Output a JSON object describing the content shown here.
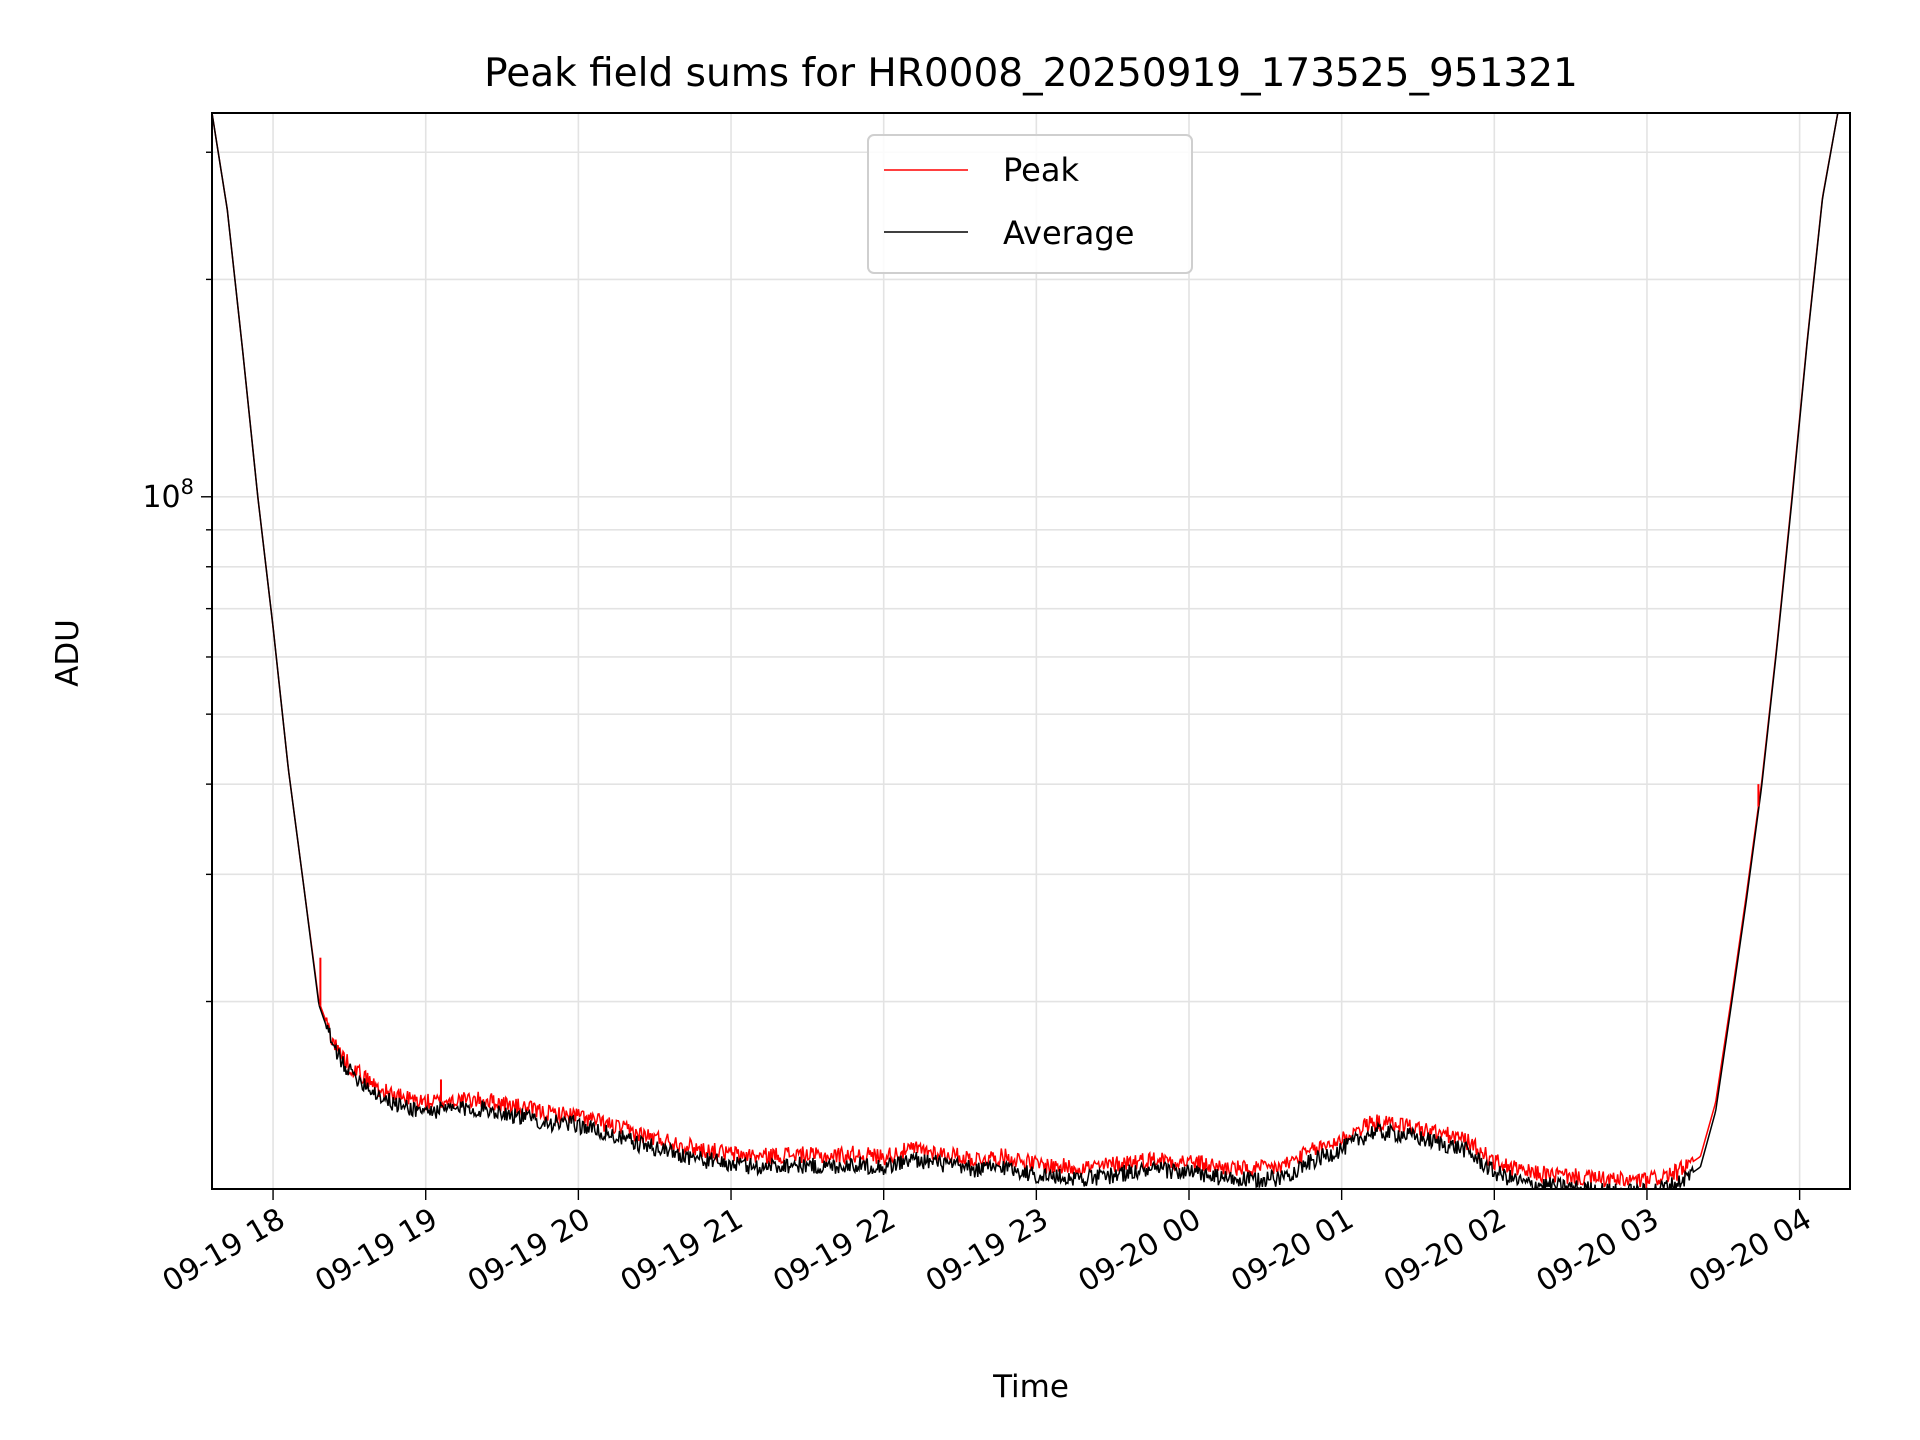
{
  "chart_data": {
    "type": "line",
    "title": "Peak field sums for HR0008_20250919_173525_951321",
    "xlabel": "Time",
    "ylabel": "ADU",
    "yscale": "log",
    "grid": true,
    "grid_color": "#e3e3e3",
    "legend_position": "top-center",
    "x_unit": "hours since 2025-09-19 17:00",
    "xlim": [
      0.6,
      11.33
    ],
    "ylim": [
      11000000,
      340000000
    ],
    "y_major_tick": {
      "value": 100000000,
      "base": "10",
      "exponent": "8"
    },
    "y_minor_ticks": [
      20000000,
      30000000,
      40000000,
      50000000,
      60000000,
      70000000,
      80000000,
      90000000,
      200000000,
      300000000
    ],
    "x_ticks": [
      {
        "value": 1,
        "label": "09-19 18"
      },
      {
        "value": 2,
        "label": "09-19 19"
      },
      {
        "value": 3,
        "label": "09-19 20"
      },
      {
        "value": 4,
        "label": "09-19 21"
      },
      {
        "value": 5,
        "label": "09-19 22"
      },
      {
        "value": 6,
        "label": "09-19 23"
      },
      {
        "value": 7,
        "label": "09-20 00"
      },
      {
        "value": 8,
        "label": "09-20 01"
      },
      {
        "value": 9,
        "label": "09-20 02"
      },
      {
        "value": 10,
        "label": "09-20 03"
      },
      {
        "value": 11,
        "label": "09-20 04"
      }
    ],
    "series": [
      {
        "name": "Peak",
        "color": "#ff0000",
        "x": [
          0.6,
          0.7,
          0.8,
          0.9,
          1.0,
          1.1,
          1.2,
          1.3,
          1.4,
          1.5,
          1.6,
          1.7,
          1.8,
          2.0,
          2.2,
          2.4,
          2.6,
          2.8,
          3.0,
          3.2,
          3.4,
          3.6,
          3.8,
          4.0,
          4.2,
          4.4,
          4.6,
          4.8,
          5.0,
          5.2,
          5.4,
          5.6,
          5.8,
          6.0,
          6.2,
          6.4,
          6.6,
          6.8,
          7.0,
          7.2,
          7.4,
          7.6,
          7.8,
          8.0,
          8.2,
          8.4,
          8.6,
          8.8,
          9.0,
          9.2,
          9.4,
          9.6,
          9.8,
          10.0,
          10.2,
          10.35,
          10.45,
          10.55,
          10.65,
          10.75,
          10.85,
          10.95,
          11.05,
          11.15,
          11.25,
          11.33
        ],
        "y": [
          340000000,
          250000000,
          160000000,
          100000000,
          66000000,
          42000000,
          29000000,
          20000000,
          17500000,
          16300000,
          15700000,
          15100000,
          14800000,
          14500000,
          14600000,
          14600000,
          14300000,
          14000000,
          13900000,
          13500000,
          13100000,
          12800000,
          12500000,
          12300000,
          12200000,
          12300000,
          12200000,
          12300000,
          12200000,
          12500000,
          12300000,
          12100000,
          12200000,
          11900000,
          11800000,
          11800000,
          12000000,
          12100000,
          12000000,
          11800000,
          11700000,
          11800000,
          12400000,
          12900000,
          13600000,
          13500000,
          13200000,
          12900000,
          12000000,
          11600000,
          11500000,
          11400000,
          11300000,
          11300000,
          11600000,
          12200000,
          14500000,
          20000000,
          28000000,
          40000000,
          62000000,
          100000000,
          165000000,
          260000000,
          340000000,
          340000000
        ]
      },
      {
        "name": "Average",
        "color": "#000000",
        "x": [
          0.6,
          0.7,
          0.8,
          0.9,
          1.0,
          1.1,
          1.2,
          1.3,
          1.4,
          1.5,
          1.6,
          1.7,
          1.8,
          2.0,
          2.2,
          2.4,
          2.6,
          2.8,
          3.0,
          3.2,
          3.4,
          3.6,
          3.8,
          4.0,
          4.2,
          4.4,
          4.6,
          4.8,
          5.0,
          5.2,
          5.4,
          5.6,
          5.8,
          6.0,
          6.2,
          6.4,
          6.6,
          6.8,
          7.0,
          7.2,
          7.4,
          7.6,
          7.8,
          8.0,
          8.2,
          8.4,
          8.6,
          8.8,
          9.0,
          9.2,
          9.4,
          9.6,
          9.8,
          10.0,
          10.2,
          10.35,
          10.45,
          10.55,
          10.65,
          10.75,
          10.85,
          10.95,
          11.05,
          11.15,
          11.25,
          11.33
        ],
        "y": [
          340000000,
          250000000,
          160000000,
          100000000,
          66000000,
          42000000,
          29000000,
          19800000,
          17200000,
          16000000,
          15400000,
          14800000,
          14400000,
          14100000,
          14200000,
          14200000,
          13900000,
          13600000,
          13500000,
          13100000,
          12700000,
          12400000,
          12100000,
          11900000,
          11800000,
          11900000,
          11800000,
          11900000,
          11800000,
          12100000,
          11900000,
          11700000,
          11800000,
          11500000,
          11400000,
          11400000,
          11600000,
          11700000,
          11600000,
          11400000,
          11300000,
          11400000,
          12000000,
          12500000,
          13200000,
          13100000,
          12800000,
          12500000,
          11600000,
          11200000,
          11100000,
          11000000,
          10900000,
          10900000,
          11200000,
          11800000,
          14100000,
          19600000,
          27500000,
          39500000,
          61500000,
          99000000,
          164000000,
          259000000,
          340000000,
          340000000
        ]
      }
    ],
    "spikes": [
      {
        "series": "Peak",
        "x": 1.31,
        "y": 23000000
      },
      {
        "series": "Peak",
        "x": 2.1,
        "y": 15600000
      },
      {
        "series": "Peak",
        "x": 10.73,
        "y": 40000000
      }
    ]
  }
}
